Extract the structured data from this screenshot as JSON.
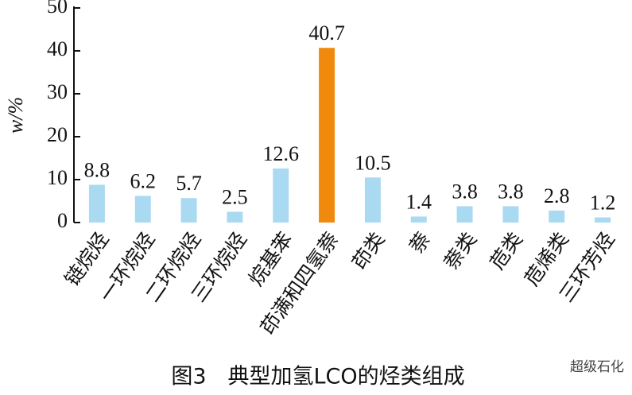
{
  "chart_data": {
    "type": "bar",
    "caption": "图3　典型加氢LCO的烃类组成",
    "watermark": "超级石化",
    "y_label": "w/%",
    "categories": [
      "链烷烃",
      "一环烷烃",
      "二环烷烃",
      "三环烷烃",
      "烷基苯",
      "茚满和四氢萘",
      "茚类",
      "萘",
      "萘类",
      "苊类",
      "苊烯类",
      "三环芳烃"
    ],
    "values": [
      8.8,
      6.2,
      5.7,
      2.5,
      12.6,
      40.7,
      10.5,
      1.4,
      3.8,
      3.8,
      2.8,
      1.2
    ],
    "colors": [
      "#a9daf2",
      "#a9daf2",
      "#a9daf2",
      "#a9daf2",
      "#a9daf2",
      "#f08a0c",
      "#a9daf2",
      "#a9daf2",
      "#a9daf2",
      "#a9daf2",
      "#a9daf2",
      "#a9daf2"
    ],
    "ylim": [
      0,
      50
    ],
    "yticks": [
      0,
      10,
      20,
      30,
      40,
      50
    ],
    "grid": false
  }
}
